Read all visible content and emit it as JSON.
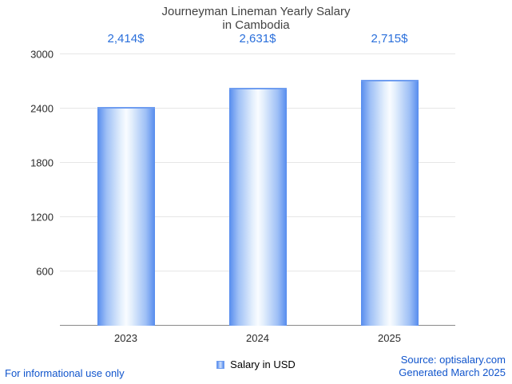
{
  "header": {
    "title_line1": "Journeyman Lineman Yearly Salary",
    "title_line2": "in Cambodia"
  },
  "legend": {
    "label": "Salary in USD",
    "swatch_color": "#568cee"
  },
  "footer": {
    "left_note": "For informational use only",
    "source_line1": "Source: optisalary.com",
    "source_line2": "Generated March 2025",
    "text_color": "#1155cc"
  },
  "chart_data": {
    "type": "bar",
    "title": "Journeyman Lineman Yearly Salary in Cambodia",
    "categories": [
      "2023",
      "2024",
      "2025"
    ],
    "series": [
      {
        "name": "Salary in USD",
        "values": [
          2414,
          2631,
          2715
        ]
      }
    ],
    "value_labels": [
      "2,414$",
      "2,631$",
      "2,715$"
    ],
    "xlabel": "",
    "ylabel": "",
    "ylim": [
      0,
      3000
    ],
    "yticks": [
      600,
      1200,
      1800,
      2400,
      3000
    ],
    "grid": true,
    "legend_position": "bottom",
    "colors": {
      "bar_edge": "#568cee",
      "bar_center": "#f9fcff",
      "value_label": "#2a6fdb",
      "gridline": "#e6e6e6",
      "baseline": "#8a8a8a"
    }
  }
}
